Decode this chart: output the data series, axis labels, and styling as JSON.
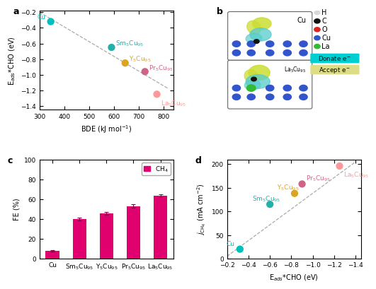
{
  "panel_a": {
    "scatter_points": [
      {
        "label": "Cu",
        "bde": 345,
        "eads": -0.32,
        "color": "#00BFBF"
      },
      {
        "label": "Sm",
        "bde": 590,
        "eads": -0.65,
        "color": "#20B2AA"
      },
      {
        "label": "Y",
        "bde": 645,
        "eads": -0.85,
        "color": "#DAA520"
      },
      {
        "label": "Pr",
        "bde": 725,
        "eads": -0.96,
        "color": "#CC6688"
      },
      {
        "label": "La",
        "bde": 773,
        "eads": -1.25,
        "color": "#FF9999"
      }
    ],
    "trendline_x": [
      300,
      820
    ],
    "trendline_y": [
      -0.2,
      -1.18
    ],
    "xlabel": "BDE (kJ mol$^{-1}$)",
    "ylabel": "E$_{ads}$*CHO (eV)",
    "xlim": [
      300,
      840
    ],
    "ylim": [
      -1.45,
      -0.18
    ],
    "yticks": [
      -1.4,
      -1.2,
      -1.0,
      -0.8,
      -0.6,
      -0.4,
      -0.2
    ],
    "xticks": [
      300,
      400,
      500,
      600,
      700,
      800
    ]
  },
  "panel_c": {
    "categories": [
      "Cu",
      "Sm$_5$Cu$_{95}$",
      "Y$_5$Cu$_{95}$",
      "Pr$_5$Cu$_{95}$",
      "La$_5$Cu$_{95}$"
    ],
    "values": [
      8.0,
      40.0,
      45.5,
      53.0,
      63.5
    ],
    "errors": [
      0.8,
      1.2,
      1.2,
      1.5,
      1.5
    ],
    "bar_color": "#E0006E",
    "ylabel": "FE (%)",
    "ylim": [
      0,
      100
    ],
    "yticks": [
      0,
      20,
      40,
      60,
      80,
      100
    ],
    "legend_label": "CH$_4$"
  },
  "panel_d": {
    "scatter_points": [
      {
        "label": "Cu",
        "eads": -0.32,
        "j": 20,
        "color": "#00BFBF"
      },
      {
        "label": "Sm$_5$Cu$_{95}$",
        "eads": -0.6,
        "j": 115,
        "color": "#20B2AA"
      },
      {
        "label": "Y$_5$Cu$_{95}$",
        "eads": -0.83,
        "j": 138,
        "color": "#DAA520"
      },
      {
        "label": "Pr$_5$Cu$_{95}$",
        "eads": -0.9,
        "j": 158,
        "color": "#CC6688"
      },
      {
        "label": "La$_5$Cu$_{95}$",
        "eads": -1.25,
        "j": 196,
        "color": "#FF9999"
      }
    ],
    "trendline_x": [
      -0.2,
      -1.4
    ],
    "trendline_y": [
      5,
      205
    ],
    "xlabel": "E$_{ads}$*CHO (eV)",
    "ylabel": "$\\it{j}_{\\rm{CH_4}}$ (mA cm$^{-2}$)",
    "xlim": [
      -0.2,
      -1.45
    ],
    "ylim": [
      0,
      210
    ],
    "yticks": [
      0,
      50,
      100,
      150,
      200
    ],
    "xticks": [
      -0.2,
      -0.4,
      -0.6,
      -0.8,
      -1.0,
      -1.2,
      -1.4
    ]
  },
  "legend_b": {
    "items": [
      {
        "label": "H",
        "color": "#D8D8D8"
      },
      {
        "label": "C",
        "color": "#111111"
      },
      {
        "label": "O",
        "color": "#DD2222"
      },
      {
        "label": "Cu",
        "color": "#3355CC"
      },
      {
        "label": "La",
        "color": "#33BB33"
      }
    ],
    "donate_color": "#00CED1",
    "accept_color": "#DDDD88"
  },
  "background_color": "#ffffff",
  "marker_size": 55,
  "font_size": 7,
  "tick_font_size": 6.5,
  "label_fontsize": 9
}
